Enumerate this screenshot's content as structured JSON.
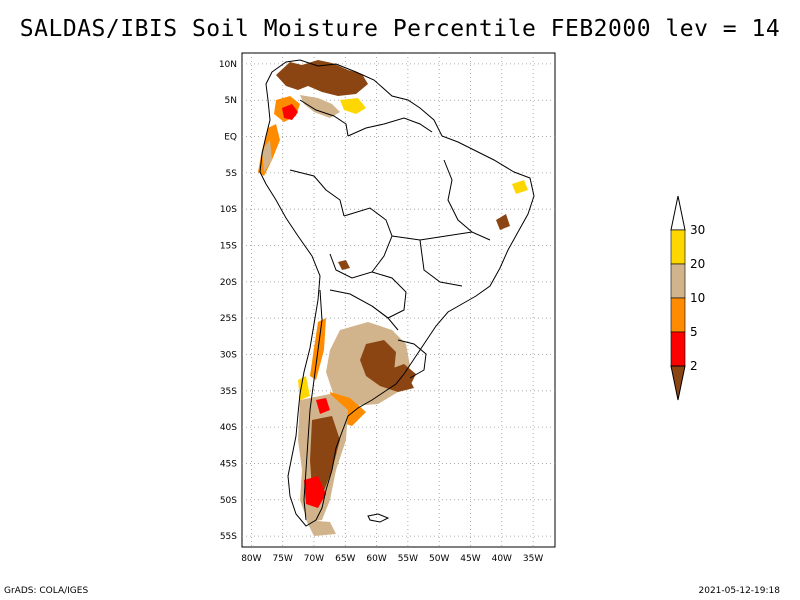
{
  "title": "SALDAS/IBIS Soil Moisture Percentile FEB2000 lev = 14",
  "footer": {
    "left": "GrADS: COLA/IGES",
    "right": "2021-05-12-19:18"
  },
  "axes": {
    "lon_labels": [
      "80W",
      "75W",
      "70W",
      "65W",
      "60W",
      "55W",
      "50W",
      "45W",
      "40W",
      "35W"
    ],
    "lat_labels": [
      "10N",
      "5N",
      "EQ",
      "5S",
      "10S",
      "15S",
      "20S",
      "25S",
      "30S",
      "35S",
      "40S",
      "45S",
      "50S",
      "55S"
    ]
  },
  "colorbar": {
    "levels": [
      "2",
      "5",
      "10",
      "20",
      "30"
    ],
    "colors": [
      "#8B4513",
      "#FF0000",
      "#FF8C00",
      "#D2B48C",
      "#FFD700",
      "#FFFFFF"
    ]
  },
  "palette": {
    "brown": "#8B4513",
    "red": "#FF0000",
    "orange": "#FF8C00",
    "tan": "#D2B48C",
    "yellow": "#FFD700"
  }
}
